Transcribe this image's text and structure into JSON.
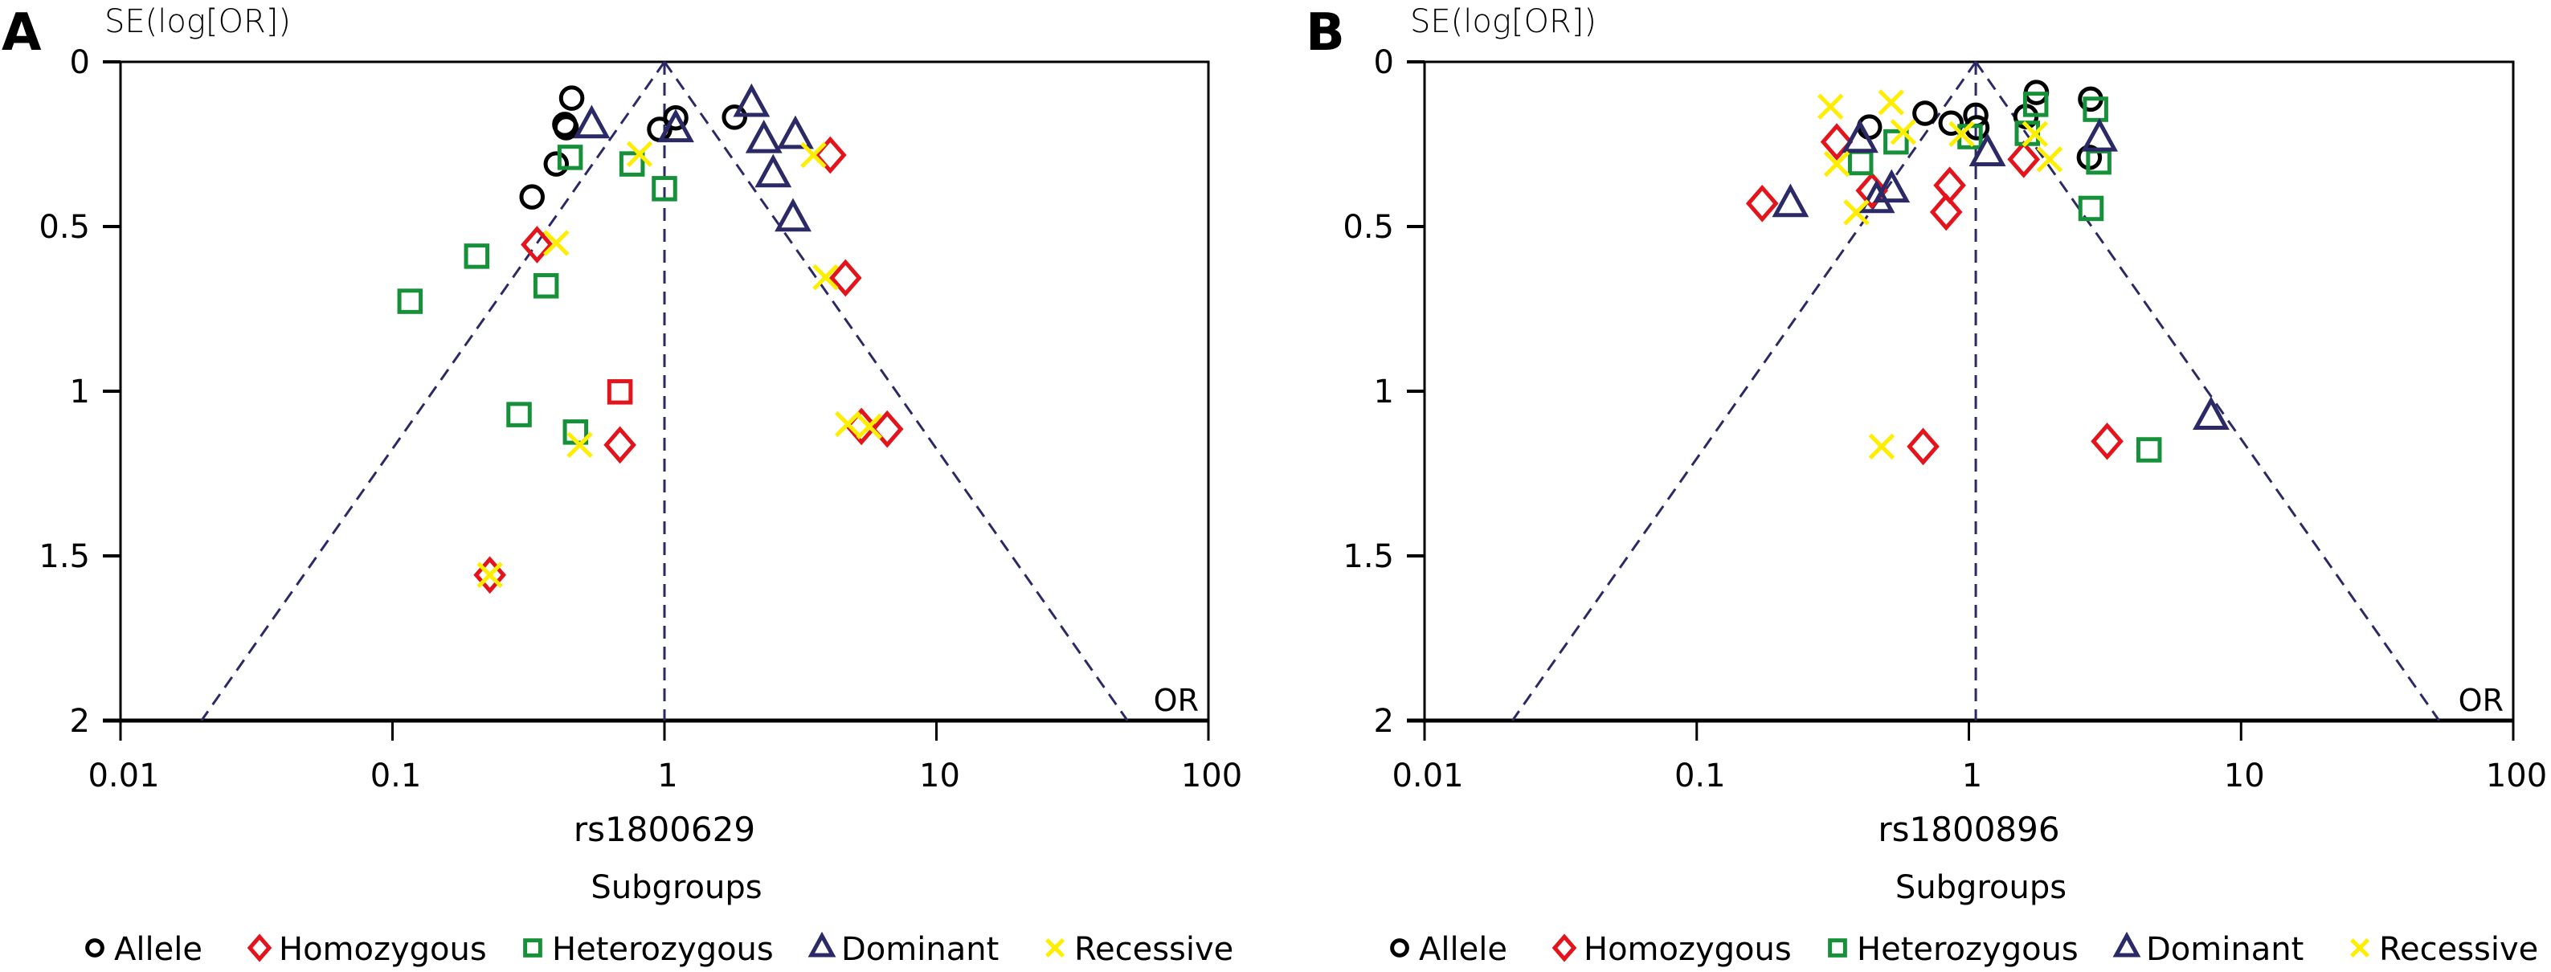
{
  "chart_data": [
    {
      "type": "scatter",
      "subtype": "funnel",
      "panel_label": "A",
      "title": "",
      "xlabel": "rs1800629",
      "ylabel": "SE(log[OR])",
      "x_scale": "log",
      "xlim": [
        0.01,
        100
      ],
      "ylim": [
        0,
        2
      ],
      "y_inverted": true,
      "x_ticks": [
        "0.01",
        "0.1",
        "1",
        "10",
        "100"
      ],
      "x_tick_values": [
        0.01,
        0.1,
        1,
        10,
        100
      ],
      "y_ticks": [
        "0",
        "0.5",
        "1",
        "1.5",
        "2"
      ],
      "y_tick_values": [
        0,
        0.5,
        1,
        1.5,
        2
      ],
      "corner_label": "OR",
      "pooled_or": 1.0,
      "funnel_z": 1.96,
      "legend_title": "Subgroups",
      "legend_position": "bottom",
      "series": [
        {
          "name": "Allele",
          "marker": "circle",
          "color": "#000000",
          "points": [
            [
              0.456,
              0.11
            ],
            [
              0.43,
              0.19
            ],
            [
              0.435,
              0.2
            ],
            [
              0.4,
              0.31
            ],
            [
              0.326,
              0.41
            ],
            [
              0.96,
              0.205
            ],
            [
              1.1,
              0.17
            ],
            [
              1.81,
              0.168
            ]
          ]
        },
        {
          "name": "Homozygous",
          "marker": "diamond",
          "color": "#e3141c",
          "points": [
            [
              0.34,
              0.555
            ],
            [
              4.07,
              0.283
            ],
            [
              4.63,
              0.656
            ],
            [
              0.686,
              1.163
            ],
            [
              5.3,
              1.107
            ],
            [
              6.59,
              1.115
            ],
            [
              0.228,
              1.558
            ],
            [
              0.686,
              1.002,
              "square"
            ]
          ]
        },
        {
          "name": "Heterozygous",
          "marker": "square",
          "color": "#16913a",
          "points": [
            [
              0.45,
              0.29
            ],
            [
              0.76,
              0.31
            ],
            [
              1.0,
              0.385
            ],
            [
              0.204,
              0.59
            ],
            [
              0.367,
              0.68
            ],
            [
              0.116,
              0.727
            ],
            [
              0.292,
              1.071
            ],
            [
              0.471,
              1.124
            ]
          ]
        },
        {
          "name": "Dominant",
          "marker": "triangle",
          "color": "#2b2a66",
          "points": [
            [
              0.54,
              0.195
            ],
            [
              1.1,
              0.207
            ],
            [
              2.09,
              0.13
            ],
            [
              2.32,
              0.24
            ],
            [
              3.03,
              0.227
            ],
            [
              2.51,
              0.344
            ],
            [
              2.97,
              0.478
            ]
          ]
        },
        {
          "name": "Recessive",
          "marker": "x",
          "color": "#ffee00",
          "points": [
            [
              0.81,
              0.28
            ],
            [
              0.4,
              0.55
            ],
            [
              3.53,
              0.283
            ],
            [
              3.91,
              0.654
            ],
            [
              0.488,
              1.163
            ],
            [
              4.72,
              1.1
            ],
            [
              5.66,
              1.107
            ],
            [
              0.228,
              1.558
            ]
          ]
        }
      ]
    },
    {
      "type": "scatter",
      "subtype": "funnel",
      "panel_label": "B",
      "title": "",
      "xlabel": "rs1800896",
      "ylabel": "SE(log[OR])",
      "x_scale": "log",
      "xlim": [
        0.01,
        100
      ],
      "ylim": [
        0,
        2
      ],
      "y_inverted": true,
      "x_ticks": [
        "0.01",
        "0.1",
        "1",
        "10",
        "100"
      ],
      "x_tick_values": [
        0.01,
        0.1,
        1,
        10,
        100
      ],
      "y_ticks": [
        "0",
        "0.5",
        "1",
        "1.5",
        "2"
      ],
      "y_tick_values": [
        0,
        0.5,
        1,
        1.5,
        2
      ],
      "corner_label": "OR",
      "pooled_or": 1.06,
      "funnel_z": 1.96,
      "legend_title": "Subgroups",
      "legend_position": "bottom",
      "series": [
        {
          "name": "Allele",
          "marker": "circle",
          "color": "#000000",
          "points": [
            [
              0.431,
              0.198
            ],
            [
              0.69,
              0.156
            ],
            [
              0.86,
              0.186
            ],
            [
              1.06,
              0.162
            ],
            [
              1.07,
              0.2
            ],
            [
              1.77,
              0.093
            ],
            [
              1.62,
              0.166
            ],
            [
              2.8,
              0.113
            ],
            [
              2.77,
              0.29
            ]
          ]
        },
        {
          "name": "Homozygous",
          "marker": "diamond",
          "color": "#e3141c",
          "points": [
            [
              0.174,
              0.43
            ],
            [
              0.327,
              0.243
            ],
            [
              0.44,
              0.391
            ],
            [
              0.85,
              0.375
            ],
            [
              0.825,
              0.456
            ],
            [
              1.59,
              0.296
            ],
            [
              0.679,
              1.168
            ],
            [
              3.22,
              1.152
            ]
          ]
        },
        {
          "name": "Heterozygous",
          "marker": "square",
          "color": "#16913a",
          "points": [
            [
              0.4,
              0.306
            ],
            [
              0.54,
              0.243
            ],
            [
              1.01,
              0.227
            ],
            [
              1.76,
              0.129
            ],
            [
              1.64,
              0.217
            ],
            [
              2.92,
              0.144
            ],
            [
              3.0,
              0.304
            ],
            [
              2.81,
              0.445
            ],
            [
              4.59,
              1.178
            ]
          ]
        },
        {
          "name": "Dominant",
          "marker": "triangle",
          "color": "#2b2a66",
          "points": [
            [
              0.221,
              0.434
            ],
            [
              0.398,
              0.239
            ],
            [
              0.52,
              0.39
            ],
            [
              0.458,
              0.422
            ],
            [
              1.17,
              0.28
            ],
            [
              3.02,
              0.235
            ],
            [
              7.76,
              1.08
            ]
          ]
        },
        {
          "name": "Recessive",
          "marker": "x",
          "color": "#ffee00",
          "points": [
            [
              0.31,
              0.136
            ],
            [
              0.327,
              0.31
            ],
            [
              0.518,
              0.123
            ],
            [
              0.574,
              0.213
            ],
            [
              0.386,
              0.457
            ],
            [
              0.94,
              0.219
            ],
            [
              1.75,
              0.219
            ],
            [
              1.98,
              0.296
            ],
            [
              0.478,
              1.168
            ]
          ]
        }
      ]
    }
  ],
  "legend": {
    "title": "Subgroups",
    "items": [
      {
        "label": "Allele",
        "marker": "circle",
        "color": "#000000"
      },
      {
        "label": "Homozygous",
        "marker": "diamond",
        "color": "#e3141c"
      },
      {
        "label": "Heterozygous",
        "marker": "square",
        "color": "#16913a"
      },
      {
        "label": "Dominant",
        "marker": "triangle",
        "color": "#2b2a66"
      },
      {
        "label": "Recessive",
        "marker": "x",
        "color": "#ffee00"
      }
    ]
  },
  "style": {
    "funnel_line_color": "#2b2a66",
    "axis_color": "#000000"
  }
}
